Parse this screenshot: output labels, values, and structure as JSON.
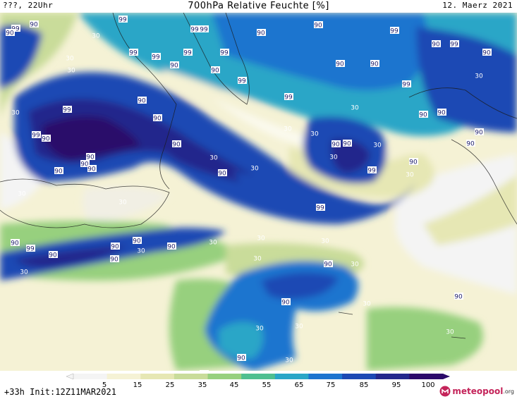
{
  "header": {
    "left": "???, 22Uhr",
    "title": "700hPa Relative Feuchte [%]",
    "date": "12. Maerz 2021"
  },
  "footer": {
    "init": "+33h Init:12Z11MAR2021",
    "brand_name": "meteopool",
    "brand_tld": ".org"
  },
  "colorbar": {
    "tick_labels": [
      "5",
      "15",
      "25",
      "35",
      "45",
      "55",
      "65",
      "75",
      "85",
      "95",
      "100"
    ],
    "colors": [
      "#f4f4f4",
      "#f5f2d5",
      "#e6e7b4",
      "#c9dc9a",
      "#97d07e",
      "#4fbf90",
      "#2aa6c7",
      "#1c74cf",
      "#1c49b4",
      "#23288c",
      "#2c0a6a"
    ]
  },
  "map": {
    "contour_labels": [
      "99",
      "90",
      "99",
      "90",
      "99",
      "99",
      "90",
      "90",
      "99",
      "90",
      "99",
      "90",
      "30",
      "30",
      "99",
      "99",
      "90",
      "99",
      "99",
      "90",
      "30",
      "90",
      "90",
      "99",
      "99",
      "30",
      "99",
      "90",
      "90",
      "90",
      "99",
      "90",
      "90",
      "99",
      "90",
      "90",
      "30",
      "90",
      "90",
      "90",
      "90",
      "30",
      "30",
      "90",
      "90",
      "30",
      "30",
      "90",
      "99",
      "99",
      "90",
      "90",
      "90",
      "30",
      "90",
      "99",
      "30",
      "90",
      "90",
      "30",
      "30",
      "90",
      "30",
      "30",
      "90",
      "30",
      "30",
      "30",
      "90",
      "30",
      "90",
      "30",
      "90",
      "90",
      "30",
      "30",
      "30",
      "30",
      "30",
      "30",
      "90",
      "30"
    ]
  }
}
